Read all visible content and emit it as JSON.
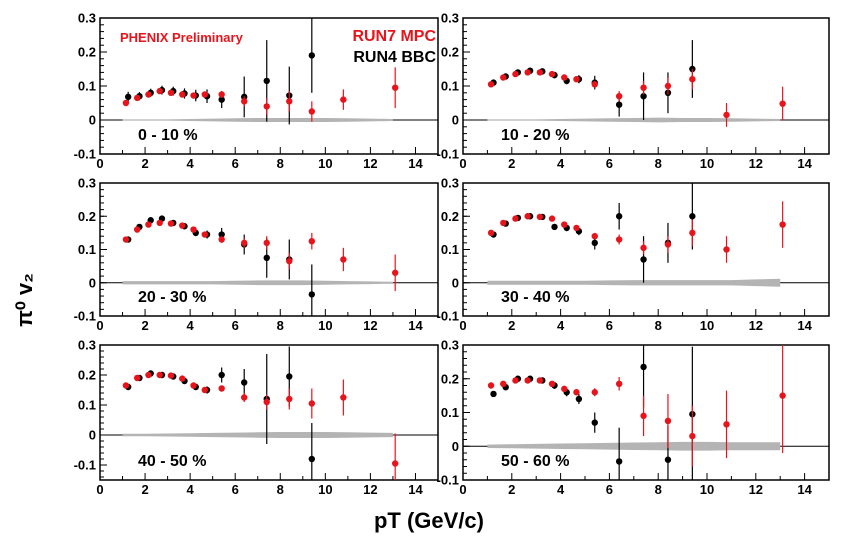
{
  "labels": {
    "ylabel": "π⁰ v₂",
    "xlabel": "pT (GeV/c)",
    "preliminary": "PHENIX Preliminary",
    "legend_run7": "RUN7 MPC",
    "legend_run4": "RUN4 BBC"
  },
  "colors": {
    "run7": "#e8141c",
    "run4": "#000000",
    "band": "#b4b4b4"
  },
  "chart_data": [
    {
      "type": "scatter",
      "title": "0 - 10 %",
      "xlim": [
        0,
        15
      ],
      "ylim": [
        -0.1,
        0.3
      ],
      "xticks": [
        0,
        2,
        4,
        6,
        8,
        10,
        12,
        14
      ],
      "yticks": [
        -0.1,
        0,
        0.1,
        0.2,
        0.3
      ],
      "series": [
        {
          "name": "RUN4 BBC",
          "x": [
            1.25,
            1.75,
            2.25,
            2.75,
            3.25,
            3.75,
            4.25,
            4.75,
            5.4,
            6.4,
            7.4,
            8.4,
            9.4
          ],
          "y": [
            0.068,
            0.07,
            0.08,
            0.088,
            0.085,
            0.078,
            0.072,
            0.07,
            0.06,
            0.068,
            0.115,
            0.072,
            0.19
          ],
          "err": [
            0.015,
            0.012,
            0.012,
            0.013,
            0.013,
            0.015,
            0.017,
            0.02,
            0.025,
            0.06,
            0.12,
            0.085,
            0.11
          ]
        },
        {
          "name": "RUN7 MPC",
          "x": [
            1.15,
            1.65,
            2.15,
            2.65,
            3.15,
            3.65,
            4.15,
            4.65,
            5.4,
            6.4,
            7.4,
            8.4,
            9.4,
            10.8,
            13.1
          ],
          "y": [
            0.05,
            0.065,
            0.075,
            0.085,
            0.08,
            0.075,
            0.072,
            0.075,
            0.075,
            0.055,
            0.04,
            0.055,
            0.025,
            0.06,
            0.095
          ],
          "err": [
            0.005,
            0.005,
            0.005,
            0.006,
            0.006,
            0.007,
            0.008,
            0.008,
            0.01,
            0.015,
            0.025,
            0.03,
            0.03,
            0.03,
            0.06
          ]
        }
      ],
      "band": {
        "x": [
          1,
          2,
          3,
          4,
          5,
          6,
          7,
          8,
          9,
          10,
          11,
          12,
          13
        ],
        "half_width": [
          0.002,
          0.002,
          0.002,
          0.003,
          0.004,
          0.005,
          0.006,
          0.006,
          0.006,
          0.006,
          0.005,
          0.004,
          0.003
        ]
      }
    },
    {
      "type": "scatter",
      "title": "10 - 20 %",
      "xlim": [
        0,
        15
      ],
      "ylim": [
        -0.1,
        0.3
      ],
      "xticks": [
        0,
        2,
        4,
        6,
        8,
        10,
        12,
        14
      ],
      "yticks": [
        -0.1,
        0,
        0.1,
        0.2,
        0.3
      ],
      "series": [
        {
          "name": "RUN4 BBC",
          "x": [
            1.25,
            1.75,
            2.25,
            2.75,
            3.25,
            3.75,
            4.25,
            4.75,
            5.4,
            6.4,
            7.4,
            8.4,
            9.4
          ],
          "y": [
            0.11,
            0.128,
            0.14,
            0.145,
            0.143,
            0.132,
            0.115,
            0.12,
            0.11,
            0.045,
            0.07,
            0.08,
            0.15
          ],
          "err": [
            0.006,
            0.006,
            0.007,
            0.007,
            0.008,
            0.009,
            0.01,
            0.012,
            0.02,
            0.035,
            0.07,
            0.06,
            0.085
          ]
        },
        {
          "name": "RUN7 MPC",
          "x": [
            1.15,
            1.65,
            2.15,
            2.65,
            3.15,
            3.65,
            4.15,
            4.65,
            5.4,
            6.4,
            7.4,
            8.4,
            9.4,
            10.8,
            13.1
          ],
          "y": [
            0.105,
            0.125,
            0.135,
            0.14,
            0.14,
            0.135,
            0.125,
            0.12,
            0.105,
            0.07,
            0.095,
            0.1,
            0.12,
            0.015,
            0.048
          ],
          "err": [
            0.004,
            0.004,
            0.004,
            0.005,
            0.005,
            0.006,
            0.006,
            0.007,
            0.01,
            0.015,
            0.02,
            0.025,
            0.03,
            0.035,
            0.05
          ]
        }
      ],
      "band": {
        "x": [
          1,
          2,
          3,
          4,
          5,
          6,
          7,
          8,
          9,
          10,
          11,
          12,
          13
        ],
        "half_width": [
          0.002,
          0.002,
          0.002,
          0.003,
          0.004,
          0.005,
          0.006,
          0.007,
          0.006,
          0.006,
          0.005,
          0.004,
          0.003
        ]
      }
    },
    {
      "type": "scatter",
      "title": "20 - 30 %",
      "xlim": [
        0,
        15
      ],
      "ylim": [
        -0.1,
        0.3
      ],
      "xticks": [
        0,
        2,
        4,
        6,
        8,
        10,
        12,
        14
      ],
      "yticks": [
        -0.1,
        0,
        0.1,
        0.2,
        0.3
      ],
      "series": [
        {
          "name": "RUN4 BBC",
          "x": [
            1.25,
            1.75,
            2.25,
            2.75,
            3.25,
            3.75,
            4.25,
            4.75,
            5.4,
            6.4,
            7.4,
            8.4,
            9.4
          ],
          "y": [
            0.13,
            0.168,
            0.188,
            0.193,
            0.18,
            0.17,
            0.15,
            0.145,
            0.145,
            0.115,
            0.075,
            0.07,
            -0.035
          ],
          "err": [
            0.006,
            0.006,
            0.007,
            0.007,
            0.008,
            0.009,
            0.01,
            0.012,
            0.02,
            0.03,
            0.06,
            0.06,
            0.09
          ]
        },
        {
          "name": "RUN7 MPC",
          "x": [
            1.15,
            1.65,
            2.15,
            2.65,
            3.15,
            3.65,
            4.15,
            4.65,
            5.4,
            6.4,
            7.4,
            8.4,
            9.4,
            10.8,
            13.1
          ],
          "y": [
            0.13,
            0.16,
            0.175,
            0.18,
            0.178,
            0.172,
            0.16,
            0.145,
            0.13,
            0.12,
            0.12,
            0.065,
            0.125,
            0.07,
            0.03
          ],
          "err": [
            0.004,
            0.004,
            0.004,
            0.005,
            0.005,
            0.006,
            0.006,
            0.007,
            0.01,
            0.015,
            0.02,
            0.025,
            0.025,
            0.035,
            0.055
          ]
        }
      ],
      "band": {
        "x": [
          1,
          2,
          3,
          4,
          5,
          6,
          7,
          8,
          9,
          10,
          11,
          12,
          13
        ],
        "half_width": [
          0.005,
          0.005,
          0.005,
          0.005,
          0.005,
          0.006,
          0.007,
          0.007,
          0.007,
          0.006,
          0.005,
          0.004,
          0.003
        ]
      }
    },
    {
      "type": "scatter",
      "title": "30 - 40 %",
      "xlim": [
        0,
        15
      ],
      "ylim": [
        -0.1,
        0.3
      ],
      "xticks": [
        0,
        2,
        4,
        6,
        8,
        10,
        12,
        14
      ],
      "yticks": [
        -0.1,
        0,
        0.1,
        0.2,
        0.3
      ],
      "series": [
        {
          "name": "RUN4 BBC",
          "x": [
            1.25,
            1.75,
            2.25,
            2.75,
            3.25,
            3.75,
            4.25,
            4.75,
            5.4,
            6.4,
            7.4,
            8.4,
            9.4
          ],
          "y": [
            0.145,
            0.178,
            0.195,
            0.2,
            0.198,
            0.168,
            0.165,
            0.155,
            0.12,
            0.2,
            0.07,
            0.12,
            0.2
          ],
          "err": [
            0.006,
            0.006,
            0.007,
            0.007,
            0.008,
            0.009,
            0.01,
            0.012,
            0.02,
            0.04,
            0.07,
            0.06,
            0.1
          ]
        },
        {
          "name": "RUN7 MPC",
          "x": [
            1.15,
            1.65,
            2.15,
            2.65,
            3.15,
            3.65,
            4.15,
            4.65,
            5.4,
            6.4,
            7.4,
            8.4,
            9.4,
            10.8,
            13.1
          ],
          "y": [
            0.15,
            0.18,
            0.193,
            0.2,
            0.198,
            0.193,
            0.175,
            0.165,
            0.14,
            0.13,
            0.105,
            0.115,
            0.15,
            0.1,
            0.175
          ],
          "err": [
            0.004,
            0.004,
            0.004,
            0.005,
            0.005,
            0.006,
            0.006,
            0.007,
            0.01,
            0.015,
            0.02,
            0.025,
            0.04,
            0.04,
            0.07
          ]
        }
      ],
      "band": {
        "x": [
          1,
          2,
          3,
          4,
          5,
          6,
          7,
          8,
          9,
          10,
          11,
          12,
          13
        ],
        "half_width": [
          0.006,
          0.006,
          0.006,
          0.006,
          0.006,
          0.007,
          0.008,
          0.008,
          0.008,
          0.008,
          0.008,
          0.01,
          0.012
        ]
      }
    },
    {
      "type": "scatter",
      "title": "40 - 50 %",
      "xlim": [
        0,
        15
      ],
      "ylim": [
        -0.15,
        0.3
      ],
      "xticks": [
        0,
        2,
        4,
        6,
        8,
        10,
        12,
        14
      ],
      "yticks": [
        -0.1,
        0,
        0.1,
        0.2,
        0.3
      ],
      "series": [
        {
          "name": "RUN4 BBC",
          "x": [
            1.25,
            1.75,
            2.25,
            2.75,
            3.25,
            3.75,
            4.25,
            4.75,
            5.4,
            6.4,
            7.4,
            8.4,
            9.4
          ],
          "y": [
            0.16,
            0.19,
            0.205,
            0.2,
            0.195,
            0.18,
            0.16,
            0.15,
            0.2,
            0.175,
            0.12,
            0.195,
            -0.08
          ],
          "err": [
            0.006,
            0.006,
            0.007,
            0.007,
            0.008,
            0.009,
            0.01,
            0.012,
            0.025,
            0.045,
            0.15,
            0.1,
            0.12
          ]
        },
        {
          "name": "RUN7 MPC",
          "x": [
            1.15,
            1.65,
            2.15,
            2.65,
            3.15,
            3.65,
            4.15,
            4.65,
            5.4,
            6.4,
            7.4,
            8.4,
            9.4,
            10.8,
            13.1
          ],
          "y": [
            0.165,
            0.19,
            0.2,
            0.2,
            0.198,
            0.188,
            0.165,
            0.15,
            0.155,
            0.125,
            0.11,
            0.12,
            0.105,
            0.125,
            -0.095
          ],
          "err": [
            0.004,
            0.004,
            0.004,
            0.005,
            0.005,
            0.006,
            0.006,
            0.007,
            0.01,
            0.015,
            0.025,
            0.035,
            0.05,
            0.06,
            0.1
          ]
        }
      ],
      "band": {
        "x": [
          1,
          2,
          3,
          4,
          5,
          6,
          7,
          8,
          9,
          10,
          11,
          12,
          13
        ],
        "half_width": [
          0.004,
          0.004,
          0.005,
          0.006,
          0.007,
          0.008,
          0.009,
          0.01,
          0.01,
          0.01,
          0.009,
          0.008,
          0.007
        ]
      }
    },
    {
      "type": "scatter",
      "title": "50 - 60 %",
      "xlim": [
        0,
        15
      ],
      "ylim": [
        -0.1,
        0.3
      ],
      "xticks": [
        0,
        2,
        4,
        6,
        8,
        10,
        12,
        14
      ],
      "yticks": [
        -0.1,
        0,
        0.1,
        0.2,
        0.3
      ],
      "series": [
        {
          "name": "RUN4 BBC",
          "x": [
            1.25,
            1.75,
            2.25,
            2.75,
            3.25,
            3.75,
            4.25,
            4.75,
            5.4,
            6.4,
            7.4,
            8.4,
            9.4
          ],
          "y": [
            0.155,
            0.175,
            0.2,
            0.2,
            0.195,
            0.18,
            0.16,
            0.14,
            0.07,
            -0.045,
            0.235,
            -0.04,
            0.095
          ],
          "err": [
            0.006,
            0.007,
            0.008,
            0.008,
            0.009,
            0.01,
            0.012,
            0.015,
            0.03,
            0.1,
            0.12,
            0.1,
            0.2
          ]
        },
        {
          "name": "RUN7 MPC",
          "x": [
            1.15,
            1.65,
            2.15,
            2.65,
            3.15,
            3.65,
            4.15,
            4.65,
            5.4,
            6.4,
            7.4,
            8.4,
            9.4,
            10.8,
            13.1
          ],
          "y": [
            0.18,
            0.185,
            0.195,
            0.195,
            0.195,
            0.185,
            0.17,
            0.16,
            0.16,
            0.185,
            0.09,
            0.075,
            0.03,
            0.065,
            0.15
          ],
          "err": [
            0.004,
            0.004,
            0.004,
            0.005,
            0.005,
            0.006,
            0.006,
            0.007,
            0.012,
            0.02,
            0.06,
            0.08,
            0.09,
            0.1,
            0.17
          ]
        }
      ],
      "band": {
        "x": [
          1,
          2,
          3,
          4,
          5,
          6,
          7,
          8,
          9,
          10,
          11,
          12,
          13
        ],
        "half_width": [
          0.005,
          0.006,
          0.007,
          0.008,
          0.009,
          0.01,
          0.011,
          0.012,
          0.013,
          0.013,
          0.012,
          0.012,
          0.012
        ]
      }
    }
  ]
}
